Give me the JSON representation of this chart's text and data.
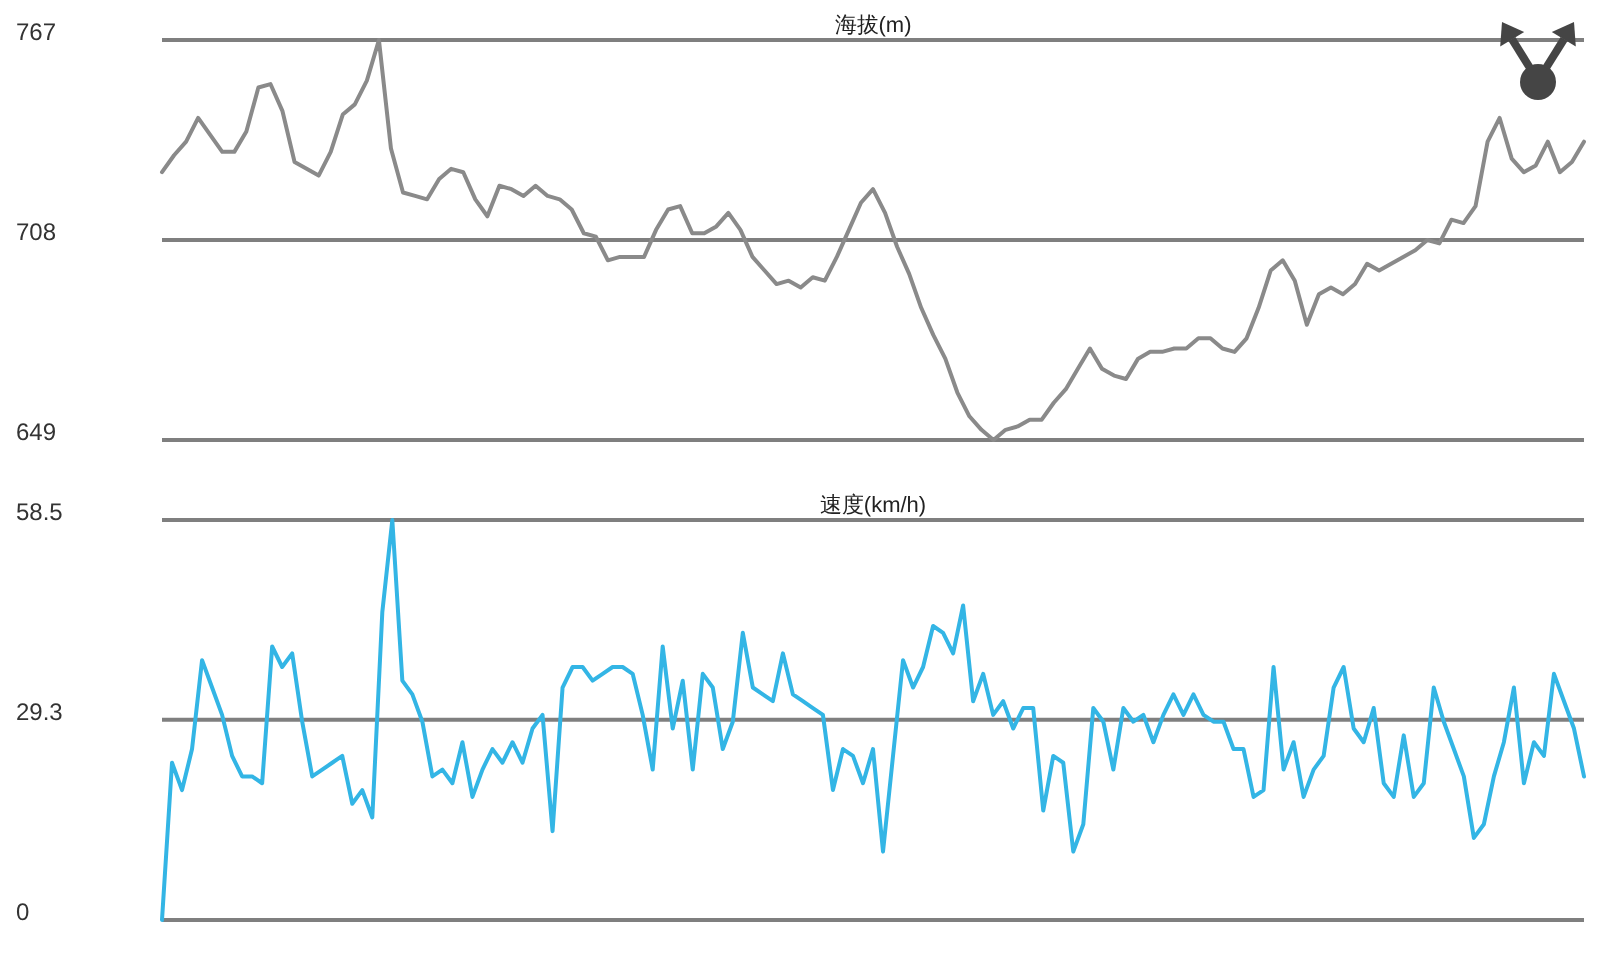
{
  "chart_data": [
    {
      "type": "line",
      "title": "海拔(m)",
      "categories": [
        null,
        null,
        null,
        null,
        null,
        null,
        null,
        null,
        null,
        null,
        null,
        null,
        null,
        null,
        null,
        null,
        null,
        null,
        null,
        null,
        null,
        null,
        null,
        null,
        null,
        null,
        null,
        null,
        null,
        null,
        null,
        null,
        null,
        null,
        null,
        null,
        null,
        null,
        null,
        null,
        null,
        null,
        null,
        null,
        null,
        null,
        null,
        null,
        null,
        null,
        null,
        null,
        null,
        null,
        null,
        null,
        null,
        null,
        null,
        null,
        null,
        null,
        null,
        null,
        null,
        null,
        null,
        null,
        null,
        null,
        null,
        null,
        null,
        null,
        null,
        null,
        null,
        null,
        null,
        null,
        null,
        null,
        null,
        null,
        null,
        null,
        null,
        null,
        null,
        null,
        null,
        null,
        null,
        null,
        null,
        null,
        null,
        null,
        null,
        null,
        null,
        null,
        null,
        null,
        null,
        null,
        null,
        null,
        null,
        null,
        null,
        null,
        null,
        null,
        null,
        null,
        null,
        null,
        null
      ],
      "series": [
        {
          "color": "#8a8a8a",
          "values": [
            728,
            733,
            737,
            744,
            739,
            734,
            734,
            740,
            753,
            754,
            746,
            731,
            729,
            727,
            734,
            745,
            748,
            755,
            767,
            735,
            722,
            721,
            720,
            726,
            729,
            728,
            720,
            715,
            724,
            723,
            721,
            724,
            721,
            720,
            717,
            710,
            709,
            702,
            703,
            703,
            703,
            711,
            717,
            718,
            710,
            710,
            712,
            716,
            711,
            703,
            699,
            695,
            696,
            694,
            697,
            696,
            703,
            711,
            719,
            723,
            716,
            706,
            698,
            688,
            680,
            673,
            663,
            656,
            652,
            649,
            652,
            653,
            655,
            655,
            660,
            664,
            670,
            676,
            670,
            668,
            667,
            673,
            675,
            675,
            676,
            676,
            679,
            679,
            676,
            675,
            679,
            688,
            699,
            702,
            696,
            683,
            692,
            694,
            692,
            695,
            701,
            699,
            701,
            703,
            705,
            708,
            707,
            714,
            713,
            718,
            737,
            744,
            732,
            728,
            730,
            737,
            728,
            731,
            737
          ]
        }
      ],
      "ylim": [
        649,
        767
      ],
      "yticks": [
        649,
        708,
        767
      ],
      "grid": "y"
    },
    {
      "type": "line",
      "title": "速度(km/h)",
      "categories": [
        null,
        null,
        null,
        null,
        null,
        null,
        null,
        null,
        null,
        null,
        null,
        null,
        null,
        null,
        null,
        null,
        null,
        null,
        null,
        null,
        null,
        null,
        null,
        null,
        null,
        null,
        null,
        null,
        null,
        null,
        null,
        null,
        null,
        null,
        null,
        null,
        null,
        null,
        null,
        null,
        null,
        null,
        null,
        null,
        null,
        null,
        null,
        null,
        null,
        null,
        null,
        null,
        null,
        null,
        null,
        null,
        null,
        null,
        null,
        null,
        null,
        null,
        null,
        null,
        null,
        null,
        null,
        null,
        null,
        null,
        null,
        null,
        null,
        null,
        null,
        null,
        null,
        null,
        null,
        null,
        null,
        null,
        null,
        null,
        null,
        null,
        null,
        null,
        null,
        null,
        null,
        null,
        null,
        null,
        null,
        null,
        null,
        null,
        null,
        null,
        null,
        null,
        null,
        null,
        null,
        null,
        null,
        null,
        null,
        null,
        null,
        null,
        null,
        null,
        null,
        null,
        null,
        null,
        null,
        null,
        null,
        null,
        null,
        null,
        null,
        null,
        null,
        null,
        null,
        null,
        null,
        null,
        null,
        null,
        null,
        null,
        null,
        null,
        null,
        null,
        null,
        null,
        null
      ],
      "series": [
        {
          "color": "#33b5e5",
          "values": [
            0,
            23,
            19,
            25,
            38,
            34,
            30,
            24,
            21,
            21,
            20,
            40,
            37,
            39,
            29,
            21,
            22,
            23,
            24,
            17,
            19,
            15,
            45,
            58.5,
            35,
            33,
            29,
            21,
            22,
            20,
            26,
            18,
            22,
            25,
            23,
            26,
            23,
            28,
            30,
            13,
            34,
            37,
            37,
            35,
            36,
            37,
            37,
            36,
            30,
            22,
            40,
            28,
            35,
            22,
            36,
            34,
            25,
            29,
            42,
            34,
            33,
            32,
            39,
            33,
            32,
            31,
            30,
            19,
            25,
            24,
            20,
            25,
            10,
            24,
            38,
            34,
            37,
            43,
            42,
            39,
            46,
            32,
            36,
            30,
            32,
            28,
            31,
            31,
            16,
            24,
            23,
            10,
            14,
            31,
            29,
            22,
            31,
            29,
            30,
            26,
            30,
            33,
            30,
            33,
            30,
            29,
            29,
            25,
            25,
            18,
            19,
            37,
            22,
            26,
            18,
            22,
            24,
            34,
            37,
            28,
            26,
            31,
            20,
            18,
            27,
            18,
            20,
            34,
            29,
            25,
            21,
            12,
            14,
            21,
            26,
            34,
            20,
            26,
            24,
            36,
            32,
            28,
            21
          ]
        }
      ],
      "ylim": [
        0,
        58.5
      ],
      "yticks": [
        0,
        29.3,
        58.5
      ],
      "grid": "y"
    }
  ]
}
